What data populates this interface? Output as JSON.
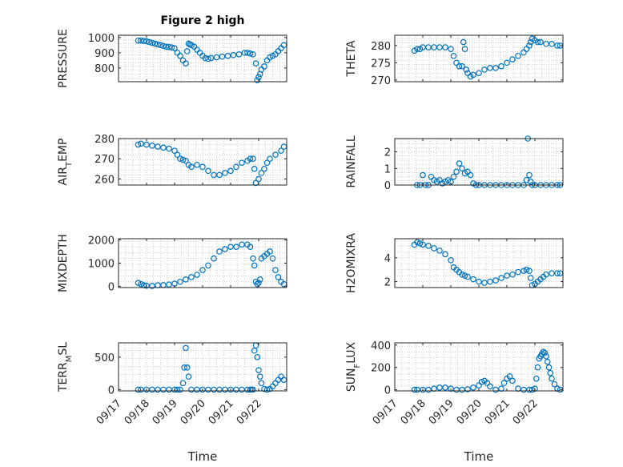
{
  "figure_title": "Figure 2 high",
  "colors": {
    "marker": "#0072BD",
    "axis": "#262626",
    "grid": "#b0b0b0"
  },
  "chart_data": [
    {
      "type": "scatter",
      "title": "Figure 2 high",
      "ylabel": "PRESSURE",
      "xlabel": "",
      "ylim": [
        710,
        1015
      ],
      "yticks": [
        800,
        900,
        1000
      ],
      "x": [
        0.7,
        0.8,
        0.9,
        1.0,
        1.1,
        1.2,
        1.3,
        1.4,
        1.5,
        1.6,
        1.7,
        1.8,
        1.9,
        2.0,
        2.1,
        2.2,
        2.3,
        2.4,
        2.45,
        2.5,
        2.55,
        2.6,
        2.7,
        2.8,
        2.9,
        3.0,
        3.1,
        3.2,
        3.3,
        3.5,
        3.7,
        3.9,
        4.1,
        4.3,
        4.5,
        4.6,
        4.7,
        4.8,
        4.9,
        4.95,
        5.0,
        5.05,
        5.1,
        5.2,
        5.3,
        5.4,
        5.5,
        5.6,
        5.7,
        5.8,
        5.9
      ],
      "y": [
        980,
        980,
        978,
        975,
        970,
        965,
        960,
        955,
        950,
        945,
        940,
        938,
        935,
        930,
        900,
        880,
        850,
        830,
        910,
        960,
        955,
        950,
        940,
        920,
        900,
        880,
        865,
        860,
        865,
        870,
        875,
        880,
        885,
        890,
        900,
        900,
        895,
        890,
        830,
        720,
        740,
        760,
        790,
        810,
        850,
        870,
        880,
        890,
        910,
        930,
        950
      ]
    },
    {
      "type": "scatter",
      "title": "",
      "ylabel": "THETA",
      "xlabel": "",
      "ylim": [
        269.5,
        283
      ],
      "yticks": [
        270,
        275,
        280
      ],
      "x": [
        0.7,
        0.8,
        0.9,
        1.0,
        1.2,
        1.4,
        1.6,
        1.8,
        2.0,
        2.1,
        2.2,
        2.3,
        2.4,
        2.45,
        2.5,
        2.55,
        2.6,
        2.7,
        2.8,
        3.0,
        3.2,
        3.4,
        3.6,
        3.8,
        4.0,
        4.2,
        4.4,
        4.6,
        4.7,
        4.8,
        4.85,
        4.9,
        5.0,
        5.1,
        5.2,
        5.4,
        5.6,
        5.8,
        5.9
      ],
      "y": [
        278.5,
        279,
        279,
        279.5,
        279.5,
        279.5,
        279.5,
        279.5,
        279,
        277,
        275,
        274,
        274,
        281,
        279,
        273,
        272,
        271,
        271.5,
        272,
        273,
        273.5,
        273.5,
        274,
        275,
        276,
        277,
        278,
        279,
        280,
        281,
        282,
        281.5,
        281,
        281,
        280.5,
        280.5,
        280,
        280
      ]
    },
    {
      "type": "scatter",
      "title": "",
      "ylabel": "AIR_TEMP",
      "xlabel": "",
      "ylim": [
        257,
        280
      ],
      "yticks": [
        260,
        270,
        280
      ],
      "x": [
        0.7,
        0.8,
        1.0,
        1.2,
        1.4,
        1.6,
        1.8,
        2.0,
        2.1,
        2.2,
        2.3,
        2.4,
        2.5,
        2.6,
        2.8,
        3.0,
        3.2,
        3.4,
        3.6,
        3.8,
        4.0,
        4.2,
        4.4,
        4.6,
        4.7,
        4.8,
        4.85,
        4.9,
        5.0,
        5.1,
        5.2,
        5.3,
        5.4,
        5.6,
        5.8,
        5.9
      ],
      "y": [
        277,
        277.5,
        277,
        276.5,
        276,
        275.5,
        275,
        274,
        272,
        270,
        269.5,
        269,
        267,
        266,
        267,
        266,
        264,
        262,
        262,
        263,
        264,
        266,
        268,
        269,
        270,
        270,
        265,
        258,
        260,
        263,
        265,
        268,
        270,
        272,
        274,
        276
      ]
    },
    {
      "type": "scatter",
      "title": "",
      "ylabel": "RAINFALL",
      "xlabel": "",
      "ylim": [
        0,
        2.8
      ],
      "yticks": [
        0,
        1,
        2
      ],
      "x": [
        0.8,
        0.9,
        1.0,
        1.1,
        1.2,
        1.3,
        1.4,
        1.5,
        1.6,
        1.7,
        1.8,
        1.9,
        2.0,
        2.1,
        2.2,
        2.3,
        2.4,
        2.5,
        2.6,
        2.7,
        2.8,
        2.9,
        3.0,
        3.2,
        3.4,
        3.6,
        3.8,
        4.0,
        4.2,
        4.4,
        4.6,
        4.7,
        4.75,
        4.8,
        4.85,
        4.9,
        5.0,
        5.2,
        5.4,
        5.6,
        5.8,
        5.9
      ],
      "y": [
        0,
        0,
        0.6,
        0,
        0,
        0.5,
        0.3,
        0.2,
        0.3,
        0.1,
        0.2,
        0.3,
        0.2,
        0.5,
        0.8,
        1.3,
        1,
        0.7,
        0.8,
        0.6,
        0.1,
        0,
        0,
        0,
        0,
        0,
        0,
        0,
        0,
        0,
        0,
        0.3,
        2.8,
        0.6,
        0.2,
        0,
        0,
        0,
        0,
        0,
        0,
        0
      ]
    },
    {
      "type": "scatter",
      "title": "",
      "ylabel": "MIXDEPTH",
      "xlabel": "",
      "ylim": [
        -50,
        2050
      ],
      "yticks": [
        0,
        1000,
        2000
      ],
      "x": [
        0.7,
        0.8,
        0.9,
        1.0,
        1.2,
        1.4,
        1.6,
        1.8,
        2.0,
        2.2,
        2.4,
        2.6,
        2.8,
        3.0,
        3.2,
        3.4,
        3.6,
        3.8,
        4.0,
        4.2,
        4.4,
        4.6,
        4.7,
        4.8,
        4.85,
        4.9,
        4.95,
        5.0,
        5.05,
        5.1,
        5.2,
        5.3,
        5.4,
        5.5,
        5.6,
        5.7,
        5.8,
        5.9
      ],
      "y": [
        150,
        100,
        50,
        30,
        20,
        50,
        60,
        80,
        120,
        200,
        300,
        400,
        500,
        700,
        900,
        1200,
        1500,
        1600,
        1700,
        1700,
        1800,
        1800,
        1700,
        1200,
        900,
        200,
        100,
        150,
        300,
        1200,
        1300,
        1400,
        1500,
        1200,
        700,
        400,
        200,
        100
      ]
    },
    {
      "type": "scatter",
      "title": "",
      "ylabel": "H2OMIXRA",
      "xlabel": "",
      "ylim": [
        1.5,
        5.6
      ],
      "yticks": [
        2,
        4
      ],
      "x": [
        0.7,
        0.8,
        0.9,
        1.0,
        1.2,
        1.4,
        1.6,
        1.8,
        2.0,
        2.1,
        2.2,
        2.3,
        2.4,
        2.5,
        2.6,
        2.8,
        3.0,
        3.2,
        3.4,
        3.6,
        3.8,
        4.0,
        4.2,
        4.4,
        4.6,
        4.7,
        4.8,
        4.85,
        4.9,
        5.0,
        5.1,
        5.2,
        5.3,
        5.4,
        5.6,
        5.8,
        5.9
      ],
      "y": [
        5.1,
        5.3,
        5.2,
        5.1,
        5,
        4.8,
        4.6,
        4.3,
        3.8,
        3.2,
        3,
        2.8,
        2.6,
        2.5,
        2.4,
        2.2,
        2,
        1.9,
        2,
        2.1,
        2.3,
        2.5,
        2.6,
        2.8,
        2.9,
        3,
        2.9,
        2.3,
        1.7,
        1.8,
        2,
        2.2,
        2.4,
        2.6,
        2.7,
        2.7,
        2.7
      ]
    },
    {
      "type": "scatter",
      "title": "",
      "ylabel": "TERR_MSL",
      "xlabel": "Time",
      "xticks": [
        "09/17",
        "09/18",
        "09/19",
        "09/20",
        "09/21",
        "09/22"
      ],
      "ylim": [
        -20,
        720
      ],
      "yticks": [
        0,
        500
      ],
      "x": [
        0.7,
        0.8,
        1.0,
        1.2,
        1.4,
        1.6,
        1.8,
        2.0,
        2.1,
        2.2,
        2.3,
        2.35,
        2.4,
        2.45,
        2.5,
        2.6,
        2.8,
        3.0,
        3.2,
        3.4,
        3.6,
        3.8,
        4.0,
        4.2,
        4.4,
        4.6,
        4.7,
        4.75,
        4.8,
        4.85,
        4.9,
        4.95,
        5.0,
        5.05,
        5.1,
        5.2,
        5.3,
        5.4,
        5.5,
        5.6,
        5.7,
        5.8,
        5.9
      ],
      "y": [
        0,
        0,
        0,
        0,
        0,
        0,
        0,
        0,
        0,
        0,
        100,
        340,
        640,
        340,
        200,
        0,
        0,
        0,
        0,
        0,
        0,
        0,
        0,
        0,
        0,
        0,
        0,
        0,
        0,
        600,
        680,
        500,
        300,
        200,
        100,
        10,
        0,
        10,
        50,
        100,
        150,
        200,
        150
      ]
    },
    {
      "type": "scatter",
      "title": "",
      "ylabel": "SUN_FLUX",
      "xlabel": "Time",
      "xticks": [
        "09/17",
        "09/18",
        "09/19",
        "09/20",
        "09/21",
        "09/22"
      ],
      "ylim": [
        -10,
        420
      ],
      "yticks": [
        0,
        200,
        400
      ],
      "x": [
        0.7,
        0.8,
        1.0,
        1.2,
        1.4,
        1.6,
        1.8,
        2.0,
        2.2,
        2.4,
        2.6,
        2.8,
        3.0,
        3.1,
        3.2,
        3.3,
        3.4,
        3.6,
        3.8,
        3.9,
        4.0,
        4.1,
        4.2,
        4.4,
        4.6,
        4.8,
        4.9,
        5.0,
        5.05,
        5.1,
        5.15,
        5.2,
        5.25,
        5.3,
        5.35,
        5.4,
        5.45,
        5.5,
        5.55,
        5.6,
        5.7,
        5.8,
        5.9
      ],
      "y": [
        0,
        0,
        0,
        0,
        10,
        20,
        20,
        10,
        0,
        0,
        5,
        20,
        40,
        70,
        80,
        60,
        30,
        0,
        10,
        60,
        100,
        120,
        80,
        10,
        0,
        0,
        0,
        10,
        100,
        200,
        280,
        300,
        320,
        340,
        330,
        300,
        250,
        200,
        150,
        100,
        50,
        10,
        0
      ]
    }
  ]
}
